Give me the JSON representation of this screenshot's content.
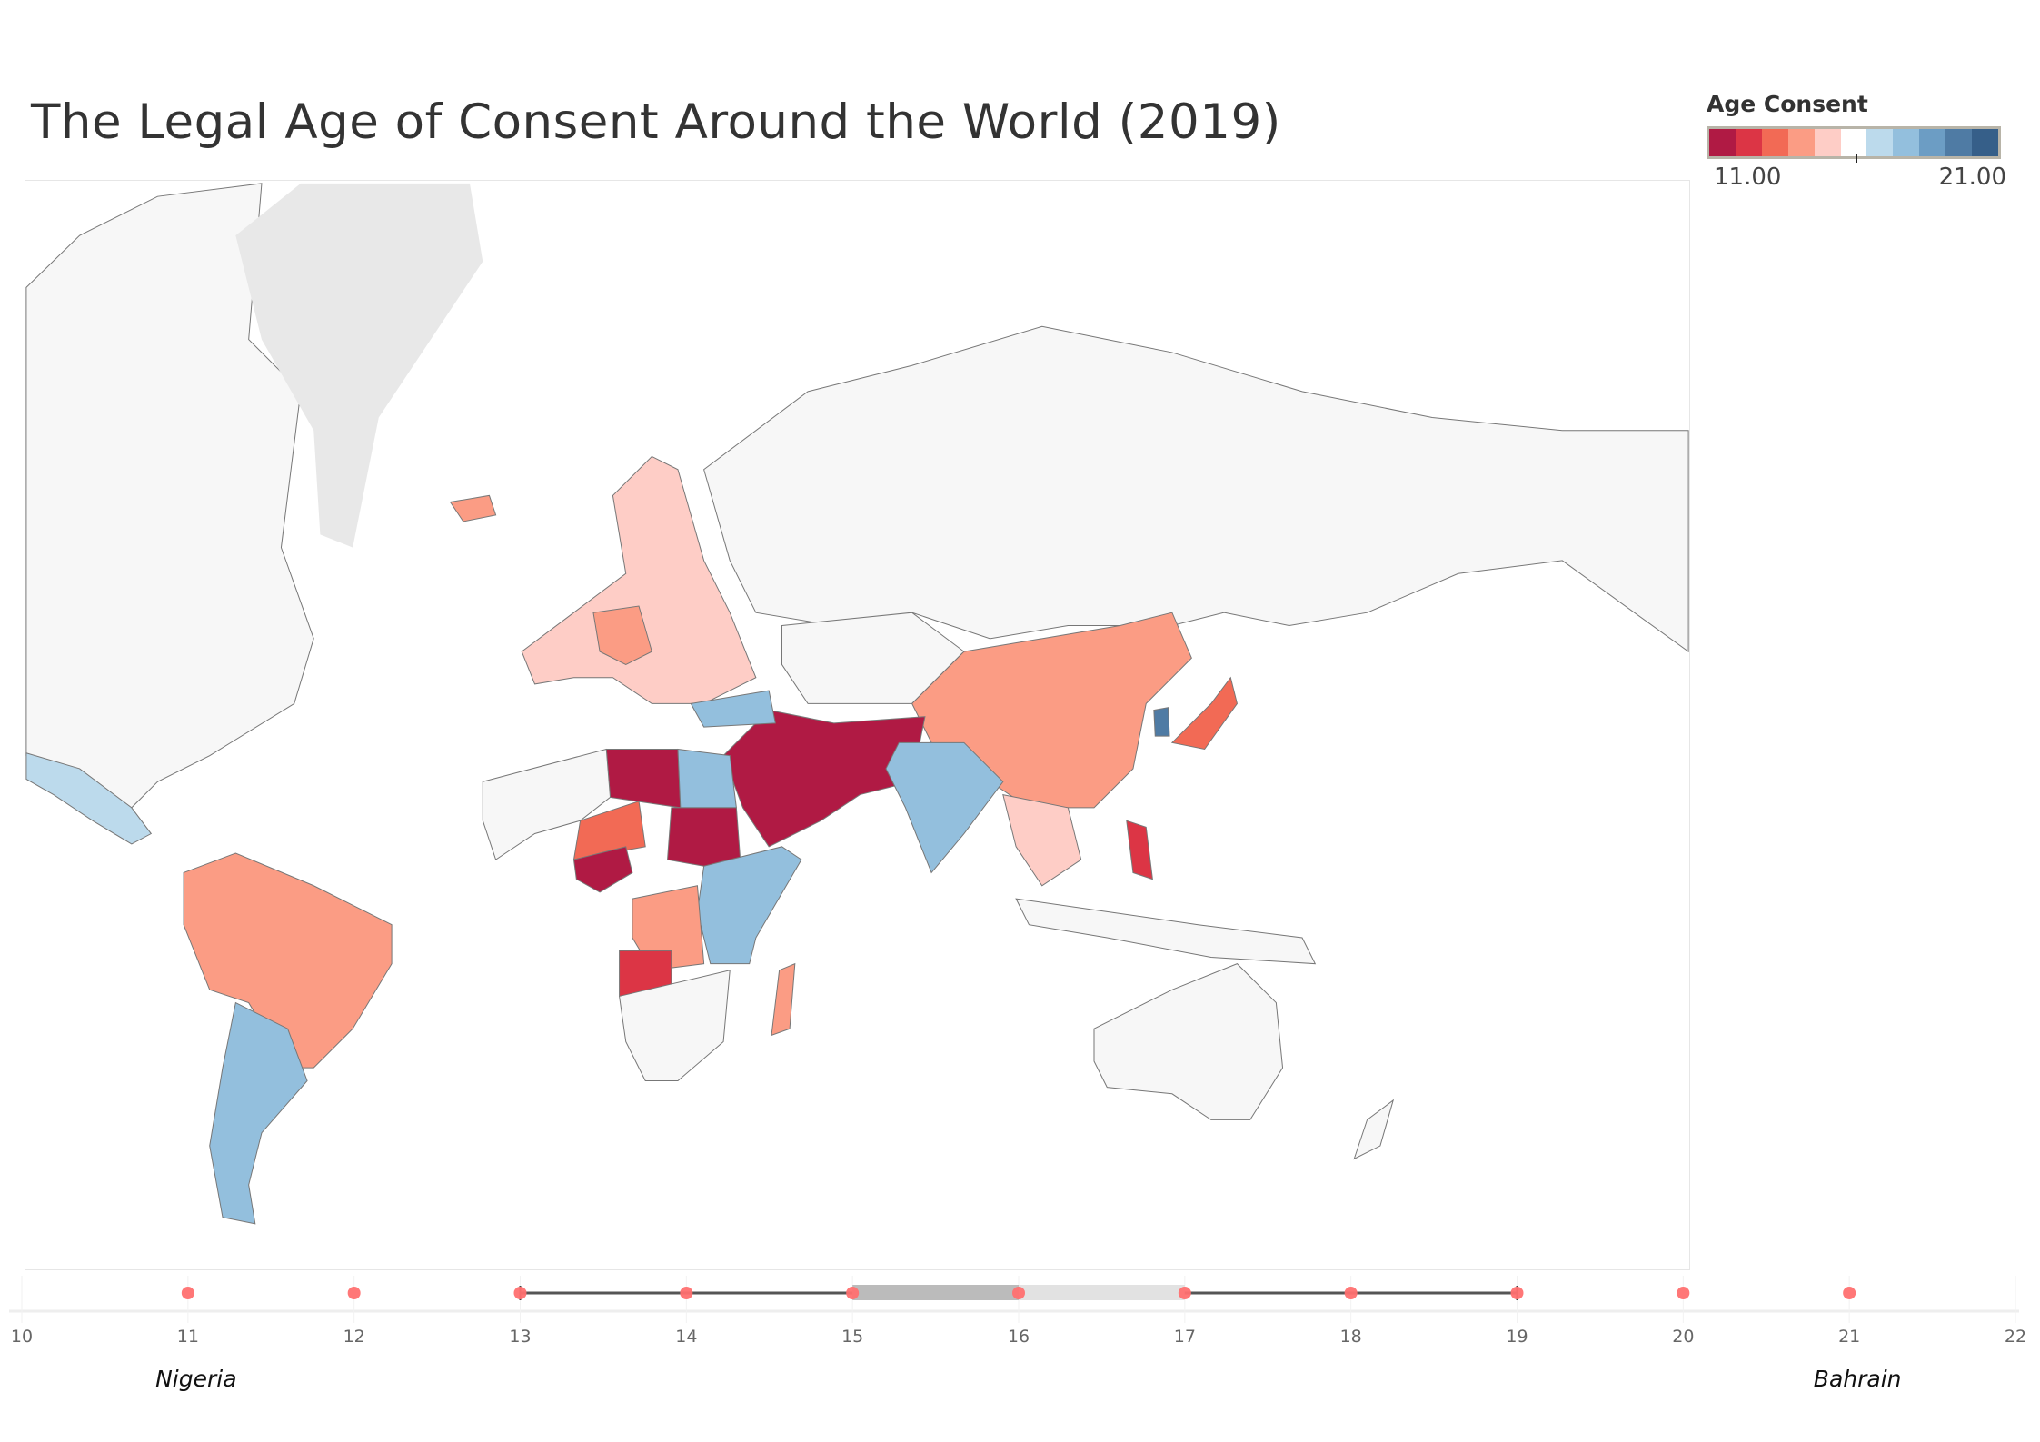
{
  "title": "The Legal Age of Consent Around the World (2019)",
  "legend": {
    "title": "Age Consent",
    "min_label": "11.00",
    "max_label": "21.00",
    "midpoint": 16,
    "colors": [
      "#b01a44",
      "#dc3545",
      "#f26a55",
      "#fb9c84",
      "#fecdc6",
      "#ffffff",
      "#bcdaec",
      "#93bfdd",
      "#6c9dc4",
      "#4f7ba4",
      "#365f89"
    ]
  },
  "chart_data": [
    {
      "type": "map",
      "title": "The Legal Age of Consent Around the World (2019)",
      "color_field": "Age Consent",
      "color_range": [
        11,
        21
      ]
    },
    {
      "type": "scatter",
      "subtype": "dot strip with box plot",
      "x_ticks": [
        10,
        11,
        12,
        13,
        14,
        15,
        16,
        17,
        18,
        19,
        20,
        21,
        22
      ],
      "xlim": [
        10,
        22
      ],
      "points": [
        11,
        12,
        13,
        14,
        15,
        16,
        17,
        18,
        19,
        20,
        21
      ],
      "box": {
        "whisker_low": 13,
        "q1": 15,
        "median": 16,
        "q3": 17,
        "whisker_high": 19
      },
      "point_color": "#ff7070",
      "annotations": [
        {
          "label": "Nigeria",
          "x": 11
        },
        {
          "label": "Bahrain",
          "x": 21
        }
      ]
    }
  ]
}
